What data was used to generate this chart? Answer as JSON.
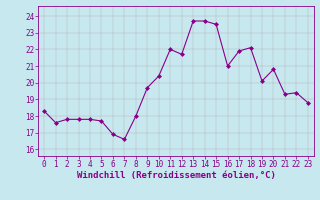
{
  "x": [
    0,
    1,
    2,
    3,
    4,
    5,
    6,
    7,
    8,
    9,
    10,
    11,
    12,
    13,
    14,
    15,
    16,
    17,
    18,
    19,
    20,
    21,
    22,
    23
  ],
  "y": [
    18.3,
    17.6,
    17.8,
    17.8,
    17.8,
    17.7,
    16.9,
    16.6,
    18.0,
    19.7,
    20.4,
    22.0,
    21.7,
    23.7,
    23.7,
    23.5,
    21.0,
    21.9,
    22.1,
    20.1,
    20.8,
    19.3,
    19.4,
    18.8
  ],
  "line_color": "#880088",
  "marker": "D",
  "marker_size": 2.0,
  "line_width": 0.8,
  "bg_color": "#c8e8f0",
  "grid_color": "#b0b0b0",
  "xlabel": "Windchill (Refroidissement éolien,°C)",
  "xlabel_fontsize": 6.5,
  "yticks": [
    16,
    17,
    18,
    19,
    20,
    21,
    22,
    23,
    24
  ],
  "xticks": [
    0,
    1,
    2,
    3,
    4,
    5,
    6,
    7,
    8,
    9,
    10,
    11,
    12,
    13,
    14,
    15,
    16,
    17,
    18,
    19,
    20,
    21,
    22,
    23
  ],
  "ylim": [
    15.6,
    24.6
  ],
  "xlim": [
    -0.5,
    23.5
  ],
  "tick_fontsize": 5.5,
  "tick_color": "#880088",
  "spine_color": "#880088"
}
